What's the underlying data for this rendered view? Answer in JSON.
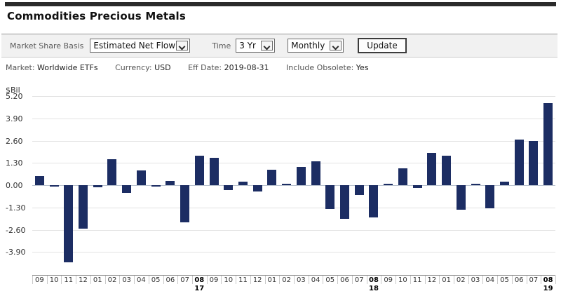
{
  "page": {
    "title": "Commodities Precious Metals"
  },
  "toolbar": {
    "market_share_basis_label": "Market Share Basis",
    "market_share_basis_value": "Estimated Net Flow",
    "time_label": "Time",
    "time_value": "3 Yr",
    "frequency_value": "Monthly",
    "update_label": "Update"
  },
  "filters": [
    {
      "label": "Market:",
      "value": "Worldwide ETFs"
    },
    {
      "label": "Currency:",
      "value": "USD"
    },
    {
      "label": "Eff Date:",
      "value": "2019-08-31"
    },
    {
      "label": "Include Obsolete:",
      "value": "Yes"
    }
  ],
  "chart_data": {
    "type": "bar",
    "title": "",
    "unit_label": "$Bil",
    "xlabel": "",
    "ylabel": "$Bil",
    "ylim": [
      -5.2,
      5.2
    ],
    "grid": true,
    "bar_color": "#1c2d63",
    "y_ticks": [
      {
        "label": "5.20",
        "value": 5.2
      },
      {
        "label": "3.90",
        "value": 3.9
      },
      {
        "label": "2.60",
        "value": 2.6
      },
      {
        "label": "1.30",
        "value": 1.3
      },
      {
        "label": "0.00",
        "value": 0.0
      },
      {
        "label": "-1.30",
        "value": -1.3
      },
      {
        "label": "-2.60",
        "value": -2.6
      },
      {
        "label": "-3.90",
        "value": -3.9
      }
    ],
    "points": [
      {
        "month": "09",
        "value": 0.55
      },
      {
        "month": "10",
        "value": -0.08
      },
      {
        "month": "11",
        "value": -4.5
      },
      {
        "month": "12",
        "value": -2.55
      },
      {
        "month": "01",
        "value": -0.12
      },
      {
        "month": "02",
        "value": 1.5
      },
      {
        "month": "03",
        "value": -0.45
      },
      {
        "month": "04",
        "value": 0.85
      },
      {
        "month": "05",
        "value": -0.1
      },
      {
        "month": "06",
        "value": 0.25
      },
      {
        "month": "07",
        "value": -2.15
      },
      {
        "month": "08",
        "value": 1.7,
        "year": "17"
      },
      {
        "month": "09",
        "value": 1.6
      },
      {
        "month": "10",
        "value": -0.27
      },
      {
        "month": "11",
        "value": 0.2
      },
      {
        "month": "12",
        "value": -0.37
      },
      {
        "month": "01",
        "value": 0.9
      },
      {
        "month": "02",
        "value": 0.02
      },
      {
        "month": "03",
        "value": 1.07
      },
      {
        "month": "04",
        "value": 1.4
      },
      {
        "month": "05",
        "value": -1.4
      },
      {
        "month": "06",
        "value": -1.95
      },
      {
        "month": "07",
        "value": -0.57
      },
      {
        "month": "08",
        "value": -1.88,
        "year": "18"
      },
      {
        "month": "09",
        "value": 0.1
      },
      {
        "month": "10",
        "value": 1.0
      },
      {
        "month": "11",
        "value": -0.16
      },
      {
        "month": "12",
        "value": 1.9
      },
      {
        "month": "01",
        "value": 1.7
      },
      {
        "month": "02",
        "value": -1.45
      },
      {
        "month": "03",
        "value": 0.1
      },
      {
        "month": "04",
        "value": -1.35
      },
      {
        "month": "05",
        "value": 0.2
      },
      {
        "month": "06",
        "value": 2.65
      },
      {
        "month": "07",
        "value": 2.6
      },
      {
        "month": "08",
        "value": 4.8,
        "year": "19"
      }
    ]
  }
}
